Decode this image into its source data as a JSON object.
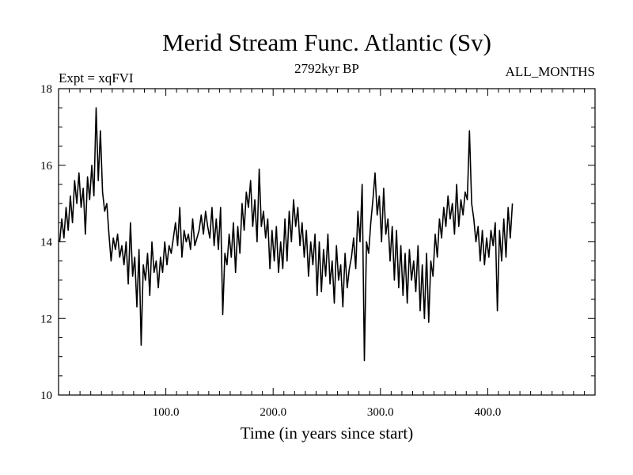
{
  "chart_data": {
    "type": "line",
    "title": "Merid Stream Func. Atlantic (Sv)",
    "subtitle_left": "Expt = xqFVI",
    "subtitle_center": "2792kyr BP",
    "subtitle_right": "ALL_MONTHS",
    "xlabel": "Time (in years since start)",
    "ylabel": "",
    "xlim": [
      0,
      500
    ],
    "ylim": [
      10,
      18
    ],
    "x_ticks": [
      100,
      200,
      300,
      400
    ],
    "x_tick_labels": [
      "100.0",
      "200.0",
      "300.0",
      "400.0"
    ],
    "y_ticks": [
      10,
      12,
      14,
      16,
      18
    ],
    "y_tick_labels": [
      "10",
      "12",
      "14",
      "16",
      "18"
    ],
    "grid": false,
    "series": [
      {
        "name": "Merid Stream Func. Atlantic",
        "x_start": 1,
        "x_step": 2,
        "values": [
          14.0,
          14.6,
          14.1,
          14.9,
          14.3,
          15.2,
          14.5,
          15.6,
          15.0,
          15.8,
          14.9,
          15.4,
          14.2,
          15.7,
          15.1,
          16.0,
          15.2,
          17.5,
          15.6,
          16.9,
          15.3,
          14.8,
          15.0,
          14.2,
          13.5,
          14.1,
          13.8,
          14.2,
          13.6,
          13.9,
          13.4,
          14.0,
          12.9,
          14.5,
          13.1,
          13.6,
          12.3,
          13.8,
          11.3,
          13.4,
          13.0,
          13.7,
          12.6,
          14.0,
          13.2,
          13.5,
          12.8,
          13.6,
          13.2,
          14.0,
          13.4,
          13.9,
          13.7,
          14.1,
          14.5,
          13.9,
          14.9,
          13.6,
          14.3,
          14.0,
          14.2,
          13.8,
          14.6,
          13.9,
          14.1,
          14.3,
          14.7,
          14.2,
          14.8,
          14.4,
          14.1,
          14.9,
          13.9,
          14.6,
          13.8,
          14.9,
          12.1,
          13.7,
          13.4,
          14.2,
          13.6,
          14.5,
          13.2,
          14.4,
          13.7,
          15.0,
          14.3,
          15.3,
          14.9,
          15.6,
          14.4,
          15.1,
          14.0,
          15.9,
          14.4,
          14.8,
          14.1,
          14.6,
          13.3,
          14.3,
          13.5,
          14.4,
          13.2,
          14.0,
          13.3,
          14.6,
          13.5,
          14.8,
          14.0,
          15.1,
          14.4,
          14.9,
          13.9,
          14.5,
          13.6,
          14.3,
          13.1,
          14.0,
          13.4,
          14.2,
          12.6,
          14.0,
          12.7,
          13.8,
          13.1,
          14.2,
          12.9,
          13.5,
          12.4,
          13.9,
          13.0,
          13.4,
          12.3,
          13.7,
          12.8,
          13.3,
          13.6,
          14.1,
          13.3,
          14.8,
          14.0,
          15.5,
          10.9,
          14.0,
          13.7,
          14.5,
          15.1,
          15.8,
          14.7,
          15.2,
          14.0,
          15.4,
          14.2,
          14.6,
          13.5,
          14.4,
          13.0,
          14.3,
          12.8,
          13.9,
          12.6,
          13.7,
          12.4,
          13.8,
          13.0,
          13.5,
          12.7,
          13.9,
          12.2,
          13.4,
          12.0,
          13.7,
          11.9,
          13.5,
          13.1,
          14.2,
          13.6,
          14.6,
          14.1,
          14.9,
          14.4,
          15.2,
          14.6,
          15.0,
          14.2,
          15.5,
          14.4,
          15.1,
          14.7,
          15.3,
          15.1,
          16.9,
          15.0,
          14.6,
          14.0,
          14.4,
          13.5,
          14.3,
          13.4,
          14.1,
          13.6,
          14.3,
          13.9,
          14.5,
          12.2,
          14.3,
          13.5,
          14.6,
          13.6,
          14.9,
          14.1,
          15.0
        ]
      }
    ]
  }
}
